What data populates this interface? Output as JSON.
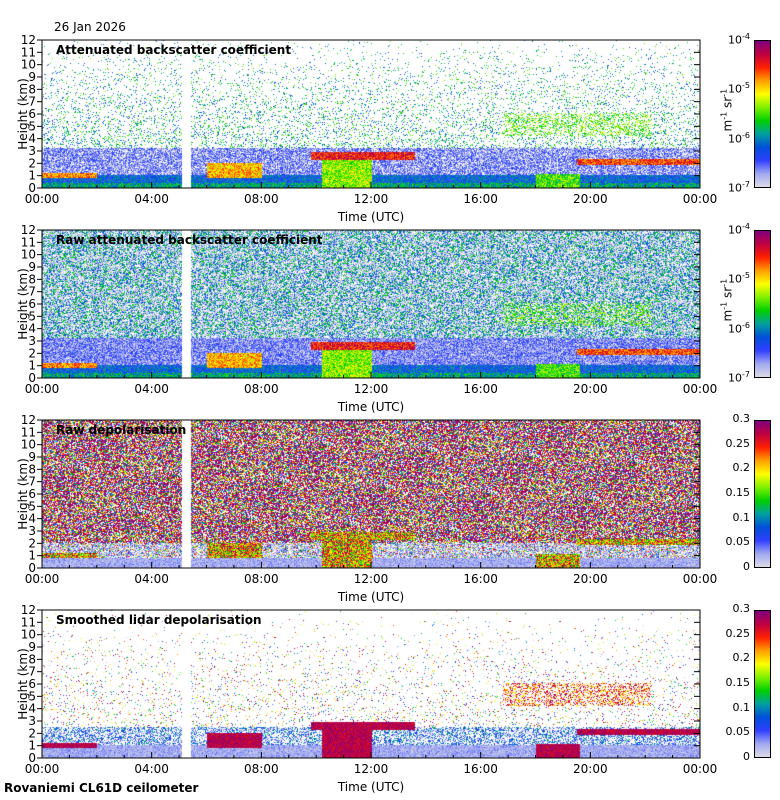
{
  "date": "26 Jan 2026",
  "footer": "Rovaniemi CL61D ceilometer",
  "colors": {
    "colormap": [
      "#dcdce6",
      "#a0a8f0",
      "#3040ff",
      "#0050d8",
      "#00a0a0",
      "#00d000",
      "#80f000",
      "#ffff00",
      "#ffa000",
      "#ff2000",
      "#c00040",
      "#800080"
    ]
  },
  "chart_data": [
    {
      "type": "heatmap",
      "title": "Attenuated backscatter coefficient",
      "xlabel": "Time (UTC)",
      "ylabel": "Height (km)",
      "xticks": [
        "00:00",
        "04:00",
        "08:00",
        "12:00",
        "16:00",
        "20:00",
        "00:00"
      ],
      "xlim": [
        0,
        24
      ],
      "ylim": [
        0,
        12
      ],
      "yticks": [
        "0",
        "1",
        "2",
        "3",
        "4",
        "5",
        "6",
        "7",
        "8",
        "9",
        "10",
        "11",
        "12"
      ],
      "colorbar": {
        "scale": "log",
        "range": [
          1e-07,
          0.0001
        ],
        "unit_base": "m",
        "unit_exp1": "-1",
        "unit_mid": " sr",
        "unit_exp2": "-1",
        "ticks": [
          {
            "base": "10",
            "exp": "-4"
          },
          {
            "base": "10",
            "exp": "-5"
          },
          {
            "base": "10",
            "exp": "-6"
          },
          {
            "base": "10",
            "exp": "-7"
          }
        ]
      },
      "style": "sparse"
    },
    {
      "type": "heatmap",
      "title": "Raw attenuated backscatter coefficient",
      "xlabel": "Time (UTC)",
      "ylabel": "Height (km)",
      "xticks": [
        "00:00",
        "04:00",
        "08:00",
        "12:00",
        "16:00",
        "20:00",
        "00:00"
      ],
      "xlim": [
        0,
        24
      ],
      "ylim": [
        0,
        12
      ],
      "yticks": [
        "0",
        "1",
        "2",
        "3",
        "4",
        "5",
        "6",
        "7",
        "8",
        "9",
        "10",
        "11",
        "12"
      ],
      "colorbar": {
        "scale": "log",
        "range": [
          1e-07,
          0.0001
        ],
        "unit_base": "m",
        "unit_exp1": "-1",
        "unit_mid": " sr",
        "unit_exp2": "-1",
        "ticks": [
          {
            "base": "10",
            "exp": "-4"
          },
          {
            "base": "10",
            "exp": "-5"
          },
          {
            "base": "10",
            "exp": "-6"
          },
          {
            "base": "10",
            "exp": "-7"
          }
        ]
      },
      "style": "dense"
    },
    {
      "type": "heatmap",
      "title": "Raw depolarisation",
      "xlabel": "Time (UTC)",
      "ylabel": "Height (km)",
      "xticks": [
        "00:00",
        "04:00",
        "08:00",
        "12:00",
        "16:00",
        "20:00",
        "00:00"
      ],
      "xlim": [
        0,
        24
      ],
      "ylim": [
        0,
        12
      ],
      "yticks": [
        "0",
        "1",
        "2",
        "3",
        "4",
        "5",
        "6",
        "7",
        "8",
        "9",
        "10",
        "11",
        "12"
      ],
      "colorbar": {
        "scale": "linear",
        "range": [
          0,
          0.3
        ],
        "ticks": [
          {
            "base": "0.3"
          },
          {
            "base": "0.25"
          },
          {
            "base": "0.2"
          },
          {
            "base": "0.15"
          },
          {
            "base": "0.1"
          },
          {
            "base": "0.05"
          },
          {
            "base": "0"
          }
        ]
      },
      "style": "depol-raw"
    },
    {
      "type": "heatmap",
      "title": "Smoothed lidar depolarisation",
      "xlabel": "Time (UTC)",
      "ylabel": "Height (km)",
      "xticks": [
        "00:00",
        "04:00",
        "08:00",
        "12:00",
        "16:00",
        "20:00",
        "00:00"
      ],
      "xlim": [
        0,
        24
      ],
      "ylim": [
        0,
        12
      ],
      "yticks": [
        "0",
        "1",
        "2",
        "3",
        "4",
        "5",
        "6",
        "7",
        "8",
        "9",
        "10",
        "11",
        "12"
      ],
      "colorbar": {
        "scale": "linear",
        "range": [
          0,
          0.3
        ],
        "ticks": [
          {
            "base": "0.3"
          },
          {
            "base": "0.25"
          },
          {
            "base": "0.2"
          },
          {
            "base": "0.15"
          },
          {
            "base": "0.1"
          },
          {
            "base": "0.05"
          },
          {
            "base": "0"
          }
        ]
      },
      "style": "depol-smooth"
    }
  ],
  "features": {
    "data_gaps_hours": [
      [
        5.1,
        5.4
      ]
    ],
    "cloud_layers": [
      {
        "t": [
          9.8,
          13.6
        ],
        "h": [
          2.2,
          2.9
        ],
        "level": 0.85
      },
      {
        "t": [
          10.2,
          12.0
        ],
        "h": [
          0.0,
          2.2
        ],
        "level": 0.55
      },
      {
        "t": [
          18.0,
          19.6
        ],
        "h": [
          0.0,
          1.1
        ],
        "level": 0.5
      },
      {
        "t": [
          19.5,
          24.0
        ],
        "h": [
          1.8,
          2.3
        ],
        "level": 0.8
      },
      {
        "t": [
          16.8,
          22.2
        ],
        "h": [
          4.2,
          6.0
        ],
        "level": 0.5
      },
      {
        "t": [
          0.0,
          2.0
        ],
        "h": [
          0.8,
          1.2
        ],
        "level": 0.75
      },
      {
        "t": [
          6.0,
          8.0
        ],
        "h": [
          0.8,
          2.0
        ],
        "level": 0.7
      }
    ]
  }
}
